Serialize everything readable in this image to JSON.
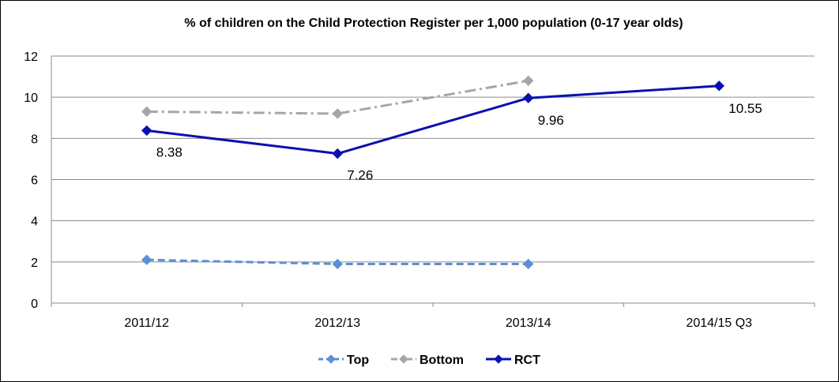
{
  "chart_data": {
    "type": "line",
    "title": "% of children on the Child Protection Register per 1,000 population (0-17 year olds)",
    "xlabel": "",
    "ylabel": "",
    "categories": [
      "2011/12",
      "2012/13",
      "2013/14",
      "2014/15 Q3"
    ],
    "ylim": [
      0,
      12
    ],
    "yticks": [
      0,
      2,
      4,
      6,
      8,
      10,
      12
    ],
    "grid": true,
    "legend_position": "bottom",
    "series": [
      {
        "name": "Top",
        "values": [
          2.1,
          1.9,
          1.9,
          null
        ],
        "color": "#5b8fd6",
        "line_style": "dashed",
        "marker": "diamond",
        "data_labels": [
          null,
          null,
          null,
          null
        ]
      },
      {
        "name": "Bottom",
        "values": [
          9.3,
          9.2,
          10.8,
          null
        ],
        "color": "#a6a6a6",
        "line_style": "dash-dot",
        "marker": "diamond",
        "data_labels": [
          null,
          null,
          null,
          null
        ]
      },
      {
        "name": "RCT",
        "values": [
          8.38,
          7.26,
          9.96,
          10.55
        ],
        "color": "#0a10b0",
        "line_style": "solid",
        "marker": "diamond",
        "data_labels": [
          "8.38",
          "7.26",
          "9.96",
          "10.55"
        ]
      }
    ]
  }
}
